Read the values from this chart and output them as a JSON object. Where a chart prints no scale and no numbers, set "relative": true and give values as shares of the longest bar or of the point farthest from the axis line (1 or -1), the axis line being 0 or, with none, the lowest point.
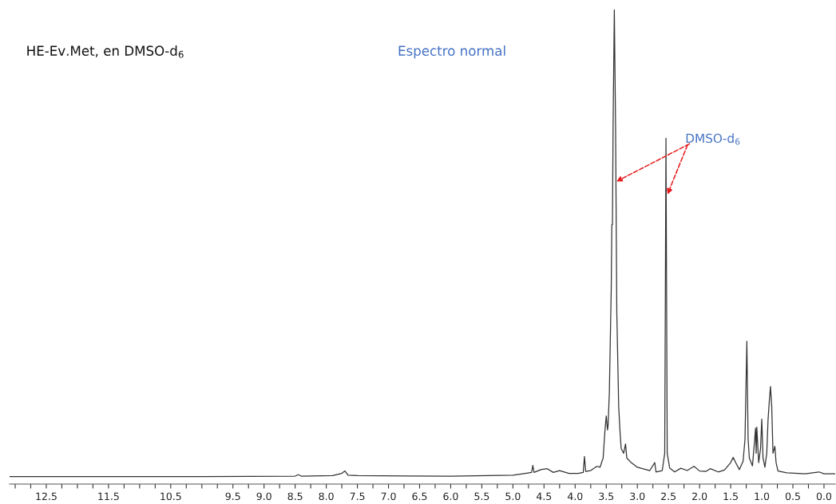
{
  "chart_data": {
    "type": "line",
    "relative": true,
    "title": "HE-Ev.Met, en DMSO-d$_{6}$",
    "annotations": [
      "Espectro normal",
      {
        "text": "DMSO-d$_{6}$",
        "x": 2.53,
        "y": 0.6
      }
    ],
    "xlim": [
      13.09,
      -0.18
    ],
    "xticks": [
      {
        "value": 13.0,
        "label": null
      },
      {
        "value": 12.75,
        "label": null
      },
      12.5,
      {
        "value": 12.25,
        "label": null
      },
      {
        "value": 12.0,
        "label": null
      },
      {
        "value": 11.75,
        "label": null
      },
      11.5,
      {
        "value": 11.25,
        "label": null
      },
      {
        "value": 11.0,
        "label": null
      },
      {
        "value": 10.75,
        "label": null
      },
      10.5,
      {
        "value": 10.25,
        "label": null
      },
      {
        "value": 10.0,
        "label": null
      },
      {
        "value": 9.75,
        "label": null
      },
      9.5,
      {
        "value": 9.25,
        "label": null
      },
      {
        "value": 9,
        "label": "9.0"
      },
      {
        "value": 8.75,
        "label": null
      },
      8.5,
      {
        "value": 8.25,
        "label": null
      },
      {
        "value": 8,
        "label": "8.0"
      },
      {
        "value": 7.75,
        "label": null
      },
      7.5,
      {
        "value": 7.25,
        "label": null
      },
      {
        "value": 7,
        "label": "7.0"
      },
      {
        "value": 6.75,
        "label": null
      },
      6.5,
      {
        "value": 6.25,
        "label": null
      },
      {
        "value": 6,
        "label": "6.0"
      },
      {
        "value": 5.75,
        "label": null
      },
      5.5,
      {
        "value": 5.25,
        "label": null
      },
      {
        "value": 5,
        "label": "5.0"
      },
      {
        "value": 4.75,
        "label": null
      },
      4.5,
      {
        "value": 4.25,
        "label": null
      },
      {
        "value": 4,
        "label": "4.0"
      },
      {
        "value": 3.75,
        "label": null
      },
      3.5,
      {
        "value": 3.25,
        "label": null
      },
      {
        "value": 3,
        "label": "3.0"
      },
      {
        "value": 2.75,
        "label": null
      },
      2.5,
      {
        "value": 2.25,
        "label": null
      },
      {
        "value": 2,
        "label": "2.0"
      },
      {
        "value": 1.75,
        "label": null
      },
      1.5,
      {
        "value": 1.25,
        "label": null
      },
      {
        "value": 1,
        "label": "1.0"
      },
      {
        "value": 0.75,
        "label": null
      },
      0.5,
      {
        "value": 0.25,
        "label": null
      },
      {
        "value": 0,
        "label": "0.0"
      }
    ],
    "grid": false,
    "marker": "none",
    "line_style": "solid",
    "series": [
      {
        "color": "#333333",
        "x": [
          13.09,
          12.0,
          10.0,
          8.5,
          8.45,
          8.4,
          7.9,
          7.75,
          7.7,
          7.65,
          7.5,
          6.0,
          5.0,
          4.8,
          4.7,
          4.68,
          4.66,
          4.55,
          4.45,
          4.35,
          4.25,
          4.1,
          3.95,
          3.87,
          3.85,
          3.83,
          3.75,
          3.65,
          3.6,
          3.55,
          3.52,
          3.5,
          3.48,
          3.47,
          3.45,
          3.42,
          3.41,
          3.4,
          3.39,
          3.37,
          3.35,
          3.33,
          3.3,
          3.28,
          3.26,
          3.22,
          3.19,
          3.17,
          3.1,
          3.0,
          2.8,
          2.72,
          2.7,
          2.6,
          2.56,
          2.54,
          2.52,
          2.48,
          2.4,
          2.3,
          2.2,
          2.09,
          2.0,
          1.9,
          1.83,
          1.7,
          1.6,
          1.5,
          1.46,
          1.42,
          1.36,
          1.3,
          1.27,
          1.24,
          1.22,
          1.2,
          1.15,
          1.12,
          1.1,
          1.09,
          1.08,
          1.05,
          1.02,
          1.0,
          0.98,
          0.95,
          0.92,
          0.9,
          0.88,
          0.86,
          0.84,
          0.82,
          0.79,
          0.77,
          0.74,
          0.6,
          0.3,
          0.08,
          0.0,
          -0.18
        ],
        "values": [
          0.0,
          0.0,
          0.0,
          0.001,
          0.004,
          0.001,
          0.002,
          0.007,
          0.012,
          0.003,
          0.002,
          0.001,
          0.003,
          0.007,
          0.009,
          0.024,
          0.009,
          0.015,
          0.017,
          0.009,
          0.013,
          0.007,
          0.007,
          0.009,
          0.043,
          0.011,
          0.013,
          0.022,
          0.02,
          0.04,
          0.1,
          0.13,
          0.1,
          0.11,
          0.18,
          0.4,
          0.54,
          0.54,
          0.75,
          1.0,
          0.75,
          0.35,
          0.15,
          0.1,
          0.06,
          0.05,
          0.07,
          0.04,
          0.03,
          0.02,
          0.013,
          0.03,
          0.01,
          0.013,
          0.05,
          0.725,
          0.05,
          0.018,
          0.01,
          0.018,
          0.013,
          0.022,
          0.012,
          0.011,
          0.017,
          0.01,
          0.014,
          0.03,
          0.041,
          0.03,
          0.015,
          0.033,
          0.08,
          0.29,
          0.08,
          0.04,
          0.023,
          0.07,
          0.104,
          0.05,
          0.106,
          0.03,
          0.06,
          0.123,
          0.04,
          0.02,
          0.05,
          0.12,
          0.16,
          0.193,
          0.15,
          0.05,
          0.065,
          0.03,
          0.012,
          0.008,
          0.006,
          0.01,
          0.006,
          0.006
        ]
      }
    ]
  }
}
